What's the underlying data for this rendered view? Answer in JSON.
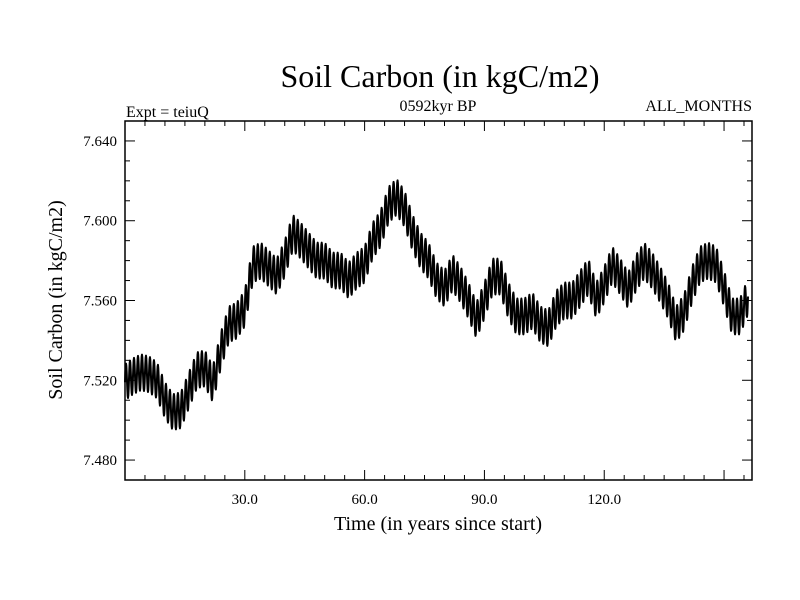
{
  "chart_data": {
    "type": "line",
    "title": "Soil Carbon (in kgC/m2)",
    "subtitle_left": "Expt = teiuQ",
    "subtitle_center": "0592kyr BP",
    "subtitle_right": "ALL_MONTHS",
    "xlabel": "Time (in years since start)",
    "ylabel": "Soil Carbon (in kgC/m2)",
    "xlim": [
      0,
      157
    ],
    "ylim": [
      7.47,
      7.65
    ],
    "xticks": [
      30,
      60,
      90,
      120
    ],
    "xtick_labels": [
      "30.0",
      "60.0",
      "90.0",
      "120.0"
    ],
    "yticks": [
      7.48,
      7.52,
      7.56,
      7.6,
      7.64
    ],
    "ytick_labels": [
      "7.480",
      "7.520",
      "7.560",
      "7.600",
      "7.640"
    ],
    "seasonal_amplitude": 0.009,
    "series": [
      {
        "name": "Soil Carbon",
        "color": "#000000",
        "x": [
          0,
          2,
          4,
          6,
          8,
          10,
          12,
          14,
          16,
          18,
          20,
          22,
          24,
          26,
          28,
          30,
          32,
          34,
          36,
          38,
          40,
          42,
          44,
          46,
          48,
          50,
          52,
          54,
          56,
          58,
          60,
          62,
          64,
          66,
          68,
          70,
          72,
          74,
          76,
          78,
          80,
          82,
          84,
          86,
          88,
          90,
          92,
          94,
          96,
          98,
          100,
          102,
          104,
          106,
          108,
          110,
          112,
          114,
          116,
          118,
          120,
          122,
          124,
          126,
          128,
          130,
          132,
          134,
          136,
          138,
          140,
          142,
          144,
          146,
          148,
          150,
          152,
          154,
          156
        ],
        "values": [
          7.519,
          7.522,
          7.524,
          7.523,
          7.52,
          7.51,
          7.504,
          7.505,
          7.515,
          7.525,
          7.526,
          7.518,
          7.535,
          7.548,
          7.55,
          7.556,
          7.578,
          7.58,
          7.576,
          7.572,
          7.581,
          7.594,
          7.59,
          7.585,
          7.58,
          7.58,
          7.575,
          7.575,
          7.57,
          7.575,
          7.578,
          7.59,
          7.596,
          7.608,
          7.612,
          7.606,
          7.594,
          7.585,
          7.58,
          7.57,
          7.566,
          7.574,
          7.568,
          7.56,
          7.55,
          7.56,
          7.572,
          7.572,
          7.56,
          7.552,
          7.552,
          7.555,
          7.548,
          7.546,
          7.556,
          7.56,
          7.56,
          7.566,
          7.572,
          7.56,
          7.568,
          7.578,
          7.572,
          7.565,
          7.574,
          7.58,
          7.575,
          7.568,
          7.56,
          7.548,
          7.554,
          7.568,
          7.578,
          7.58,
          7.578,
          7.566,
          7.552,
          7.552,
          7.562
        ]
      }
    ]
  }
}
